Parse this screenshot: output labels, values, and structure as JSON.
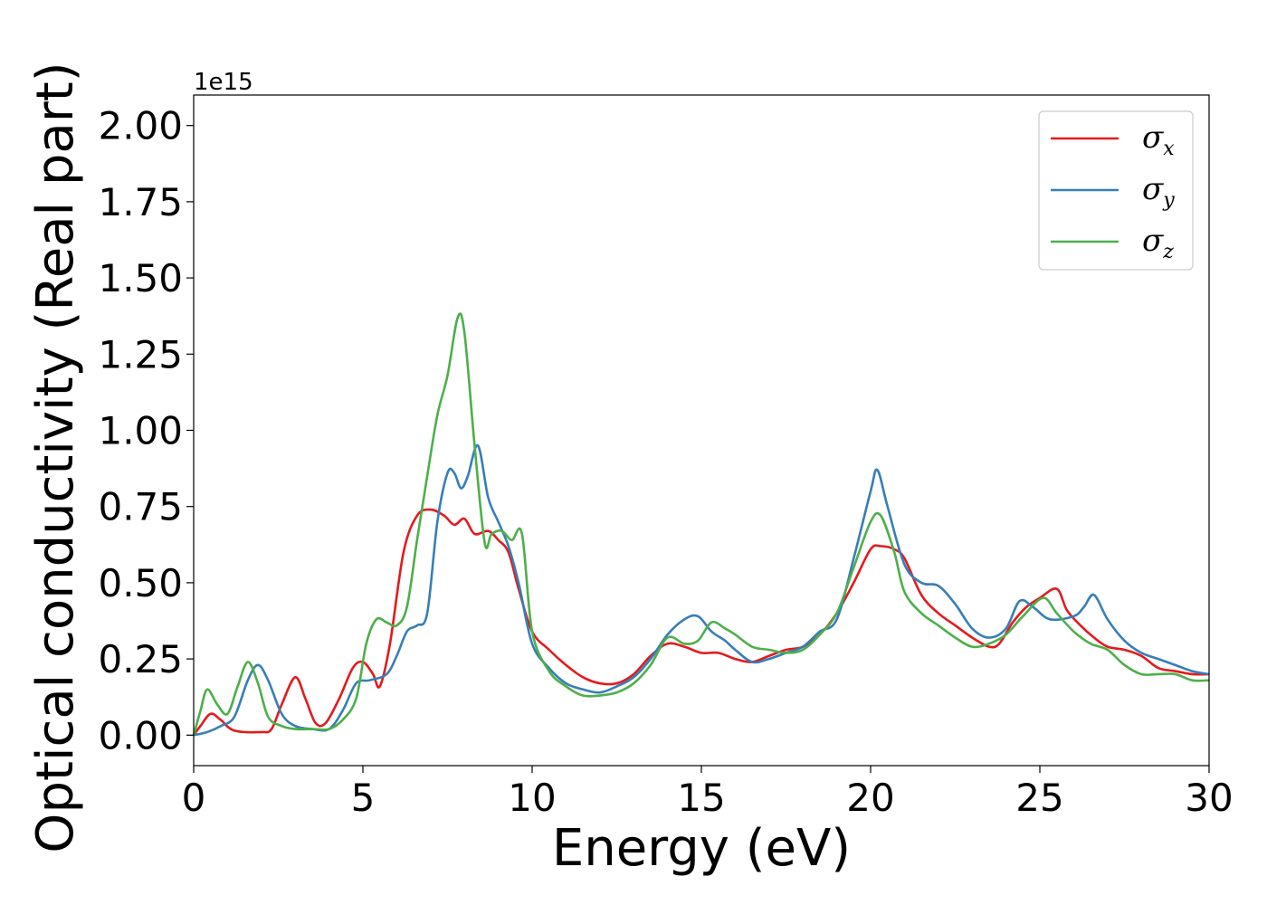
{
  "chart_data": {
    "type": "line",
    "title": "",
    "xlabel": "Energy (eV)",
    "ylabel": "Optical conductivity (Real part)",
    "y_offset_label": "1e15",
    "xlim": [
      0,
      30
    ],
    "ylim": [
      -0.1,
      2.1
    ],
    "x_ticks": [
      0,
      5,
      10,
      15,
      20,
      25,
      30
    ],
    "x_tick_labels": [
      "0",
      "5",
      "10",
      "15",
      "20",
      "25",
      "30"
    ],
    "y_ticks": [
      0.0,
      0.25,
      0.5,
      0.75,
      1.0,
      1.25,
      1.5,
      1.75,
      2.0
    ],
    "y_tick_labels": [
      "0.00",
      "0.25",
      "0.50",
      "0.75",
      "1.00",
      "1.25",
      "1.50",
      "1.75",
      "2.00"
    ],
    "grid": false,
    "legend_position": "top-right",
    "series": [
      {
        "name": "σ",
        "subscript": "x",
        "color": "#e41a1c",
        "points": [
          [
            0,
            0
          ],
          [
            0.2,
            0.03
          ],
          [
            0.5,
            0.07
          ],
          [
            0.8,
            0.05
          ],
          [
            1.2,
            0.015
          ],
          [
            2.0,
            0.01
          ],
          [
            2.3,
            0.02
          ],
          [
            2.6,
            0.1
          ],
          [
            3.0,
            0.19
          ],
          [
            3.3,
            0.12
          ],
          [
            3.6,
            0.04
          ],
          [
            3.9,
            0.04
          ],
          [
            4.3,
            0.12
          ],
          [
            4.7,
            0.22
          ],
          [
            5.0,
            0.24
          ],
          [
            5.3,
            0.2
          ],
          [
            5.5,
            0.16
          ],
          [
            5.8,
            0.3
          ],
          [
            6.2,
            0.6
          ],
          [
            6.6,
            0.72
          ],
          [
            7.0,
            0.74
          ],
          [
            7.4,
            0.72
          ],
          [
            7.7,
            0.69
          ],
          [
            8.0,
            0.71
          ],
          [
            8.3,
            0.66
          ],
          [
            8.7,
            0.67
          ],
          [
            9.0,
            0.64
          ],
          [
            9.3,
            0.6
          ],
          [
            9.6,
            0.48
          ],
          [
            10.0,
            0.34
          ],
          [
            10.5,
            0.28
          ],
          [
            11.0,
            0.23
          ],
          [
            11.5,
            0.19
          ],
          [
            12.0,
            0.17
          ],
          [
            12.5,
            0.17
          ],
          [
            13.0,
            0.2
          ],
          [
            13.5,
            0.26
          ],
          [
            14.0,
            0.3
          ],
          [
            14.5,
            0.29
          ],
          [
            15.0,
            0.27
          ],
          [
            15.5,
            0.27
          ],
          [
            16.0,
            0.25
          ],
          [
            16.5,
            0.24
          ],
          [
            17.0,
            0.26
          ],
          [
            17.5,
            0.28
          ],
          [
            18.0,
            0.29
          ],
          [
            18.5,
            0.33
          ],
          [
            19.0,
            0.4
          ],
          [
            19.5,
            0.5
          ],
          [
            20.0,
            0.61
          ],
          [
            20.3,
            0.62
          ],
          [
            20.7,
            0.61
          ],
          [
            21.0,
            0.58
          ],
          [
            21.5,
            0.46
          ],
          [
            22.0,
            0.4
          ],
          [
            22.5,
            0.36
          ],
          [
            23.0,
            0.32
          ],
          [
            23.5,
            0.29
          ],
          [
            23.8,
            0.3
          ],
          [
            24.2,
            0.37
          ],
          [
            24.6,
            0.42
          ],
          [
            25.0,
            0.45
          ],
          [
            25.5,
            0.48
          ],
          [
            25.8,
            0.41
          ],
          [
            26.2,
            0.36
          ],
          [
            26.6,
            0.32
          ],
          [
            27.0,
            0.29
          ],
          [
            27.5,
            0.28
          ],
          [
            28.0,
            0.26
          ],
          [
            28.5,
            0.22
          ],
          [
            29.0,
            0.21
          ],
          [
            29.5,
            0.2
          ],
          [
            30,
            0.2
          ]
        ]
      },
      {
        "name": "σ",
        "subscript": "y",
        "color": "#377eb8",
        "points": [
          [
            0,
            0
          ],
          [
            0.4,
            0.01
          ],
          [
            0.8,
            0.03
          ],
          [
            1.2,
            0.06
          ],
          [
            1.6,
            0.18
          ],
          [
            1.9,
            0.23
          ],
          [
            2.2,
            0.18
          ],
          [
            2.6,
            0.07
          ],
          [
            3.0,
            0.03
          ],
          [
            3.5,
            0.02
          ],
          [
            4.0,
            0.02
          ],
          [
            4.4,
            0.08
          ],
          [
            4.8,
            0.17
          ],
          [
            5.2,
            0.18
          ],
          [
            5.7,
            0.2
          ],
          [
            6.0,
            0.26
          ],
          [
            6.3,
            0.34
          ],
          [
            6.6,
            0.36
          ],
          [
            6.9,
            0.4
          ],
          [
            7.2,
            0.7
          ],
          [
            7.5,
            0.86
          ],
          [
            7.7,
            0.86
          ],
          [
            7.9,
            0.81
          ],
          [
            8.1,
            0.85
          ],
          [
            8.4,
            0.95
          ],
          [
            8.7,
            0.78
          ],
          [
            9.0,
            0.7
          ],
          [
            9.3,
            0.62
          ],
          [
            9.6,
            0.5
          ],
          [
            10.0,
            0.3
          ],
          [
            10.5,
            0.22
          ],
          [
            11.0,
            0.17
          ],
          [
            11.5,
            0.15
          ],
          [
            12.0,
            0.14
          ],
          [
            12.5,
            0.16
          ],
          [
            13.0,
            0.19
          ],
          [
            13.5,
            0.25
          ],
          [
            14.0,
            0.33
          ],
          [
            14.5,
            0.38
          ],
          [
            14.9,
            0.39
          ],
          [
            15.3,
            0.34
          ],
          [
            15.7,
            0.31
          ],
          [
            16.0,
            0.28
          ],
          [
            16.5,
            0.24
          ],
          [
            17.0,
            0.25
          ],
          [
            17.5,
            0.27
          ],
          [
            18.0,
            0.29
          ],
          [
            18.5,
            0.34
          ],
          [
            19.0,
            0.38
          ],
          [
            19.5,
            0.58
          ],
          [
            20.0,
            0.8
          ],
          [
            20.2,
            0.87
          ],
          [
            20.5,
            0.75
          ],
          [
            21.0,
            0.56
          ],
          [
            21.5,
            0.5
          ],
          [
            22.0,
            0.49
          ],
          [
            22.5,
            0.43
          ],
          [
            23.0,
            0.35
          ],
          [
            23.5,
            0.32
          ],
          [
            24.0,
            0.35
          ],
          [
            24.4,
            0.44
          ],
          [
            24.8,
            0.42
          ],
          [
            25.3,
            0.38
          ],
          [
            26.0,
            0.39
          ],
          [
            26.3,
            0.42
          ],
          [
            26.6,
            0.46
          ],
          [
            27.0,
            0.38
          ],
          [
            27.5,
            0.31
          ],
          [
            28.0,
            0.27
          ],
          [
            28.5,
            0.25
          ],
          [
            29.0,
            0.23
          ],
          [
            29.5,
            0.21
          ],
          [
            30,
            0.2
          ]
        ]
      },
      {
        "name": "σ",
        "subscript": "z",
        "color": "#4daf4a",
        "points": [
          [
            0,
            0
          ],
          [
            0.2,
            0.08
          ],
          [
            0.4,
            0.15
          ],
          [
            0.7,
            0.1
          ],
          [
            1.0,
            0.07
          ],
          [
            1.3,
            0.16
          ],
          [
            1.6,
            0.24
          ],
          [
            1.9,
            0.17
          ],
          [
            2.2,
            0.06
          ],
          [
            2.6,
            0.03
          ],
          [
            3.0,
            0.02
          ],
          [
            3.5,
            0.02
          ],
          [
            4.0,
            0.02
          ],
          [
            4.4,
            0.05
          ],
          [
            4.8,
            0.12
          ],
          [
            5.1,
            0.3
          ],
          [
            5.4,
            0.38
          ],
          [
            5.7,
            0.37
          ],
          [
            6.0,
            0.36
          ],
          [
            6.3,
            0.42
          ],
          [
            6.6,
            0.64
          ],
          [
            6.9,
            0.85
          ],
          [
            7.2,
            1.05
          ],
          [
            7.5,
            1.18
          ],
          [
            7.8,
            1.37
          ],
          [
            8.0,
            1.32
          ],
          [
            8.3,
            0.95
          ],
          [
            8.6,
            0.63
          ],
          [
            8.8,
            0.66
          ],
          [
            9.1,
            0.67
          ],
          [
            9.4,
            0.64
          ],
          [
            9.7,
            0.66
          ],
          [
            10.0,
            0.34
          ],
          [
            10.5,
            0.21
          ],
          [
            11.0,
            0.16
          ],
          [
            11.5,
            0.13
          ],
          [
            12.0,
            0.13
          ],
          [
            12.5,
            0.14
          ],
          [
            13.0,
            0.17
          ],
          [
            13.5,
            0.23
          ],
          [
            14.0,
            0.32
          ],
          [
            14.5,
            0.3
          ],
          [
            14.9,
            0.31
          ],
          [
            15.3,
            0.37
          ],
          [
            15.7,
            0.35
          ],
          [
            16.0,
            0.33
          ],
          [
            16.5,
            0.29
          ],
          [
            17.0,
            0.28
          ],
          [
            17.5,
            0.27
          ],
          [
            18.0,
            0.28
          ],
          [
            18.5,
            0.33
          ],
          [
            19.0,
            0.4
          ],
          [
            19.5,
            0.55
          ],
          [
            20.0,
            0.7
          ],
          [
            20.3,
            0.72
          ],
          [
            20.7,
            0.6
          ],
          [
            21.0,
            0.47
          ],
          [
            21.5,
            0.4
          ],
          [
            22.0,
            0.36
          ],
          [
            22.5,
            0.32
          ],
          [
            23.0,
            0.29
          ],
          [
            23.5,
            0.3
          ],
          [
            24.0,
            0.33
          ],
          [
            24.5,
            0.39
          ],
          [
            25.1,
            0.45
          ],
          [
            25.5,
            0.4
          ],
          [
            26.0,
            0.34
          ],
          [
            26.5,
            0.3
          ],
          [
            27.0,
            0.28
          ],
          [
            27.5,
            0.23
          ],
          [
            28.0,
            0.2
          ],
          [
            28.5,
            0.2
          ],
          [
            29.0,
            0.2
          ],
          [
            29.5,
            0.18
          ],
          [
            30,
            0.18
          ]
        ]
      }
    ]
  }
}
